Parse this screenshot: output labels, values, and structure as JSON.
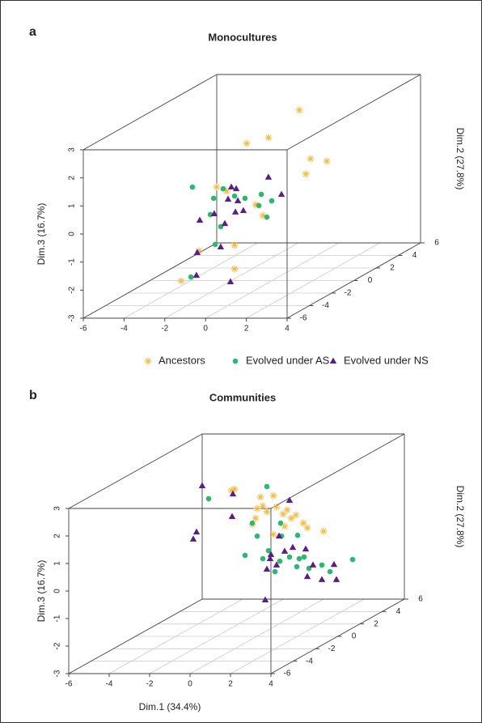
{
  "chart_data": [
    {
      "type": "scatter3d",
      "panel_label": "a",
      "title": "Monocultures",
      "z_label": "Dim.3 (16.7%)",
      "y_label": "Dim.2 (27.8%)",
      "xlim": [
        -6,
        4
      ],
      "ylim": [
        -6,
        6
      ],
      "zlim": [
        -3,
        3
      ],
      "xticks": [
        -6,
        -4,
        -2,
        0,
        2,
        4
      ],
      "yticks": [
        -6,
        -4,
        -2,
        0,
        2,
        4,
        6
      ],
      "zticks": [
        -3,
        -2,
        -1,
        0,
        1,
        2,
        3
      ],
      "grid": true,
      "legend": true,
      "series": [
        {
          "name": "Ancestors",
          "color": "#f6b93b",
          "marker": "asterisk",
          "x": [
            -0.86,
            -2.37,
            -3.44,
            -0.31,
            0.49,
            -0.54,
            -2.73,
            -2.25,
            -0.46,
            -1.42,
            0.33,
            0.33,
            -2.29,
            -0.82
          ],
          "y": [
            4,
            4,
            4,
            4,
            4,
            4,
            0,
            0,
            0,
            -4,
            -4,
            -4,
            -4,
            0
          ],
          "z": [
            2.18,
            1.2,
            0.99,
            0.45,
            0.36,
            -0.1,
            0.33,
            0.19,
            -0.68,
            -1.05,
            -0.85,
            -1.69,
            -2.12,
            -0.3
          ]
        },
        {
          "name": "Evolved under AS",
          "color": "#2db872",
          "marker": "circle",
          "x": [
            -3.92,
            -2.88,
            -2.41,
            -1.85,
            -1.34,
            -0.54,
            -0.03,
            -0.66,
            -0.27,
            -3.04,
            -2.53,
            -0.62,
            -1.81
          ],
          "y": [
            0,
            0,
            0,
            0,
            0,
            0,
            0,
            0,
            0,
            0,
            0,
            -4,
            -4
          ],
          "z": [
            0.33,
            -0.07,
            0.27,
            0.01,
            -0.07,
            0.07,
            -0.16,
            -0.33,
            -0.74,
            -0.65,
            -1.08,
            -0.82,
            -1.98
          ]
        },
        {
          "name": "Evolved under NS",
          "color": "#5a1e87",
          "marker": "triangle",
          "x": [
            -0.19,
            0.45,
            -2.01,
            -1.77,
            -2.17,
            -1.69,
            -3.56,
            -2.85,
            -2.33,
            -1.81,
            -1.42,
            -1.5,
            -0.35,
            -1.54,
            0.13
          ],
          "y": [
            0,
            0,
            0,
            0,
            0,
            0,
            0,
            0,
            0,
            0,
            0,
            -4,
            -4,
            -4,
            -4
          ],
          "z": [
            0.68,
            0.07,
            0.33,
            0.27,
            -0.1,
            -0.16,
            -0.85,
            -0.62,
            -0.97,
            -0.56,
            -0.51,
            -1.11,
            -0.91,
            -1.92,
            -2.15
          ]
        }
      ]
    },
    {
      "type": "scatter3d",
      "panel_label": "b",
      "title": "Communities",
      "x_label": "Dim.1 (34.4%)",
      "z_label": "Dim.3 (16.7%)",
      "y_label": "Dim.2 (27.8%)",
      "xlim": [
        -6,
        4
      ],
      "ylim": [
        -6,
        6
      ],
      "zlim": [
        -3,
        3
      ],
      "xticks": [
        -6,
        -4,
        -2,
        0,
        2,
        4
      ],
      "yticks": [
        -6,
        -4,
        -2,
        0,
        2,
        4,
        6
      ],
      "zticks": [
        -3,
        -2,
        -1,
        0,
        1,
        2,
        3
      ],
      "grid": true,
      "legend": false,
      "series": [
        {
          "name": "Ancestors",
          "color": "#f6b93b",
          "marker": "asterisk",
          "x": [
            -3.3,
            -3.46,
            -2.02,
            -1.9,
            -2.26,
            -2.42,
            -1.38,
            -1.22,
            -1.7,
            -0.9,
            -0.7,
            -0.5,
            -0.26,
            0.1,
            0.3,
            1.1,
            -1.38,
            -0.82,
            -2.18
          ],
          "y": [
            4,
            4,
            4,
            4,
            4,
            4,
            4,
            4,
            4,
            4,
            4,
            4,
            4,
            4,
            4,
            4,
            4,
            4,
            4
          ],
          "z": [
            1.45,
            1.39,
            1.16,
            0.83,
            0.39,
            0.16,
            1.21,
            0.8,
            0.63,
            0.54,
            0.69,
            0.39,
            0.51,
            0.21,
            0.04,
            -0.08,
            -0.2,
            0.1,
            0.74
          ]
        },
        {
          "name": "Evolved under AS",
          "color": "#2db872",
          "marker": "circle",
          "x": [
            -1.7,
            -4.58,
            -2.42,
            -1.02,
            -2.18,
            -2.78,
            -1.9,
            -0.98,
            -1.62,
            -1.06,
            -0.58,
            -0.18,
            -0.1,
            0.14,
            0.38,
            1.02,
            1.42,
            2.54,
            -0.22,
            -1.3
          ],
          "y": [
            4,
            4,
            4,
            4,
            4,
            4,
            4,
            4,
            4,
            4,
            4,
            4,
            4,
            4,
            4,
            4,
            4,
            4,
            4,
            4
          ],
          "z": [
            1.54,
            1.1,
            0.21,
            0.21,
            -0.26,
            -0.96,
            -1.08,
            -0.26,
            -0.79,
            -1.17,
            -1.02,
            -0.23,
            -1.08,
            -1.02,
            -1.43,
            -1.31,
            -1.55,
            -1.11,
            -1.37,
            -1.55
          ]
        },
        {
          "name": "Evolved under NS",
          "color": "#5a1e87",
          "marker": "triangle",
          "x": [
            -4.9,
            -5.18,
            -5.34,
            -3.38,
            -3.42,
            -0.58,
            -1.1,
            -1.5,
            -1.7,
            -1.22,
            -0.82,
            -0.42,
            0.22,
            0.58,
            0.3,
            1.62,
            1.02,
            1.74,
            -1.78,
            -1.54
          ],
          "y": [
            4,
            4,
            4,
            4,
            4,
            4,
            4,
            4,
            4,
            4,
            4,
            4,
            4,
            4,
            4,
            4,
            4,
            4,
            4,
            4
          ],
          "z": [
            1.57,
            -0.11,
            -0.37,
            1.27,
            0.45,
            1.04,
            -0.26,
            -0.93,
            -1.46,
            -1.31,
            -0.81,
            -0.67,
            -0.73,
            -1.31,
            -1.73,
            -1.29,
            -1.84,
            -1.84,
            -2.58,
            -1.08
          ]
        }
      ]
    }
  ]
}
